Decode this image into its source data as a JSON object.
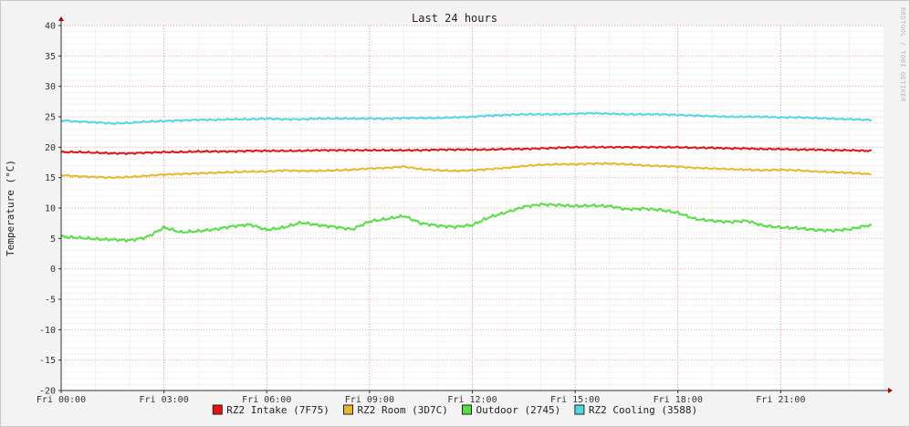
{
  "watermark": "RRDTOOL / TOBI OETIKER",
  "chart_data": {
    "type": "line",
    "title": "Last 24 hours",
    "ylabel": "Temperature (°C)",
    "xlabel": "",
    "x_hours": [
      0,
      0.5,
      1,
      1.5,
      2,
      2.5,
      3,
      3.5,
      4,
      4.5,
      5,
      5.5,
      6,
      6.5,
      7,
      7.5,
      8,
      8.5,
      9,
      9.5,
      10,
      10.5,
      11,
      11.5,
      12,
      12.5,
      13,
      13.5,
      14,
      14.5,
      15,
      15.5,
      16,
      16.5,
      17,
      17.5,
      18,
      18.5,
      19,
      19.5,
      20,
      20.5,
      21,
      21.5,
      22,
      22.5,
      23,
      23.5
    ],
    "xticks": [
      "Fri 00:00",
      "Fri 03:00",
      "Fri 06:00",
      "Fri 09:00",
      "Fri 12:00",
      "Fri 15:00",
      "Fri 18:00",
      "Fri 21:00"
    ],
    "xlim": [
      0,
      24
    ],
    "ylim": [
      -20,
      40
    ],
    "yticks": [
      "40",
      "35",
      "30",
      "25",
      "20",
      "15",
      "10",
      "5",
      "0",
      "-5",
      "-10",
      "-15",
      "-20"
    ],
    "grid": true,
    "legend_position": "bottom",
    "series": [
      {
        "name": "RZ2 Intake (7F75)",
        "color": "#e81010",
        "values": [
          19.2,
          19.2,
          19.1,
          19.0,
          19.0,
          19.1,
          19.2,
          19.2,
          19.3,
          19.3,
          19.3,
          19.4,
          19.4,
          19.4,
          19.4,
          19.5,
          19.5,
          19.5,
          19.5,
          19.5,
          19.5,
          19.5,
          19.6,
          19.6,
          19.6,
          19.6,
          19.7,
          19.7,
          19.8,
          19.9,
          20.0,
          20.0,
          20.0,
          20.0,
          20.0,
          20.0,
          20.0,
          19.9,
          19.9,
          19.8,
          19.8,
          19.7,
          19.7,
          19.6,
          19.6,
          19.5,
          19.5,
          19.4
        ]
      },
      {
        "name": "RZ2 Room (3D7C)",
        "color": "#e6b82a",
        "values": [
          15.4,
          15.2,
          15.1,
          15.0,
          15.1,
          15.3,
          15.5,
          15.6,
          15.7,
          15.8,
          15.9,
          16.0,
          16.0,
          16.2,
          16.1,
          16.1,
          16.2,
          16.3,
          16.5,
          16.6,
          16.8,
          16.4,
          16.2,
          16.1,
          16.2,
          16.4,
          16.6,
          16.9,
          17.1,
          17.2,
          17.2,
          17.3,
          17.3,
          17.2,
          17.0,
          16.9,
          16.8,
          16.6,
          16.5,
          16.4,
          16.3,
          16.2,
          16.3,
          16.2,
          16.0,
          15.9,
          15.8,
          15.6
        ]
      },
      {
        "name": "Outdoor (2745)",
        "color": "#55dd44",
        "values": [
          5.3,
          5.1,
          4.9,
          4.8,
          4.7,
          5.2,
          6.8,
          6.0,
          6.2,
          6.5,
          7.0,
          7.3,
          6.4,
          6.8,
          7.6,
          7.2,
          6.9,
          6.5,
          7.8,
          8.2,
          8.7,
          7.5,
          7.1,
          6.9,
          7.2,
          8.5,
          9.3,
          10.2,
          10.6,
          10.5,
          10.3,
          10.4,
          10.3,
          9.8,
          9.9,
          9.7,
          9.2,
          8.2,
          7.9,
          7.7,
          7.9,
          7.1,
          6.8,
          6.7,
          6.4,
          6.3,
          6.5,
          7.1
        ]
      },
      {
        "name": "RZ2 Cooling (3588)",
        "color": "#4fd8e4",
        "values": [
          24.4,
          24.2,
          24.1,
          23.9,
          24.0,
          24.2,
          24.3,
          24.4,
          24.5,
          24.5,
          24.6,
          24.6,
          24.7,
          24.6,
          24.6,
          24.7,
          24.7,
          24.7,
          24.7,
          24.7,
          24.8,
          24.8,
          24.8,
          24.9,
          25.0,
          25.2,
          25.3,
          25.4,
          25.4,
          25.4,
          25.5,
          25.6,
          25.5,
          25.4,
          25.4,
          25.4,
          25.3,
          25.2,
          25.1,
          25.0,
          25.0,
          25.0,
          24.9,
          24.9,
          24.8,
          24.7,
          24.6,
          24.5
        ]
      }
    ]
  }
}
